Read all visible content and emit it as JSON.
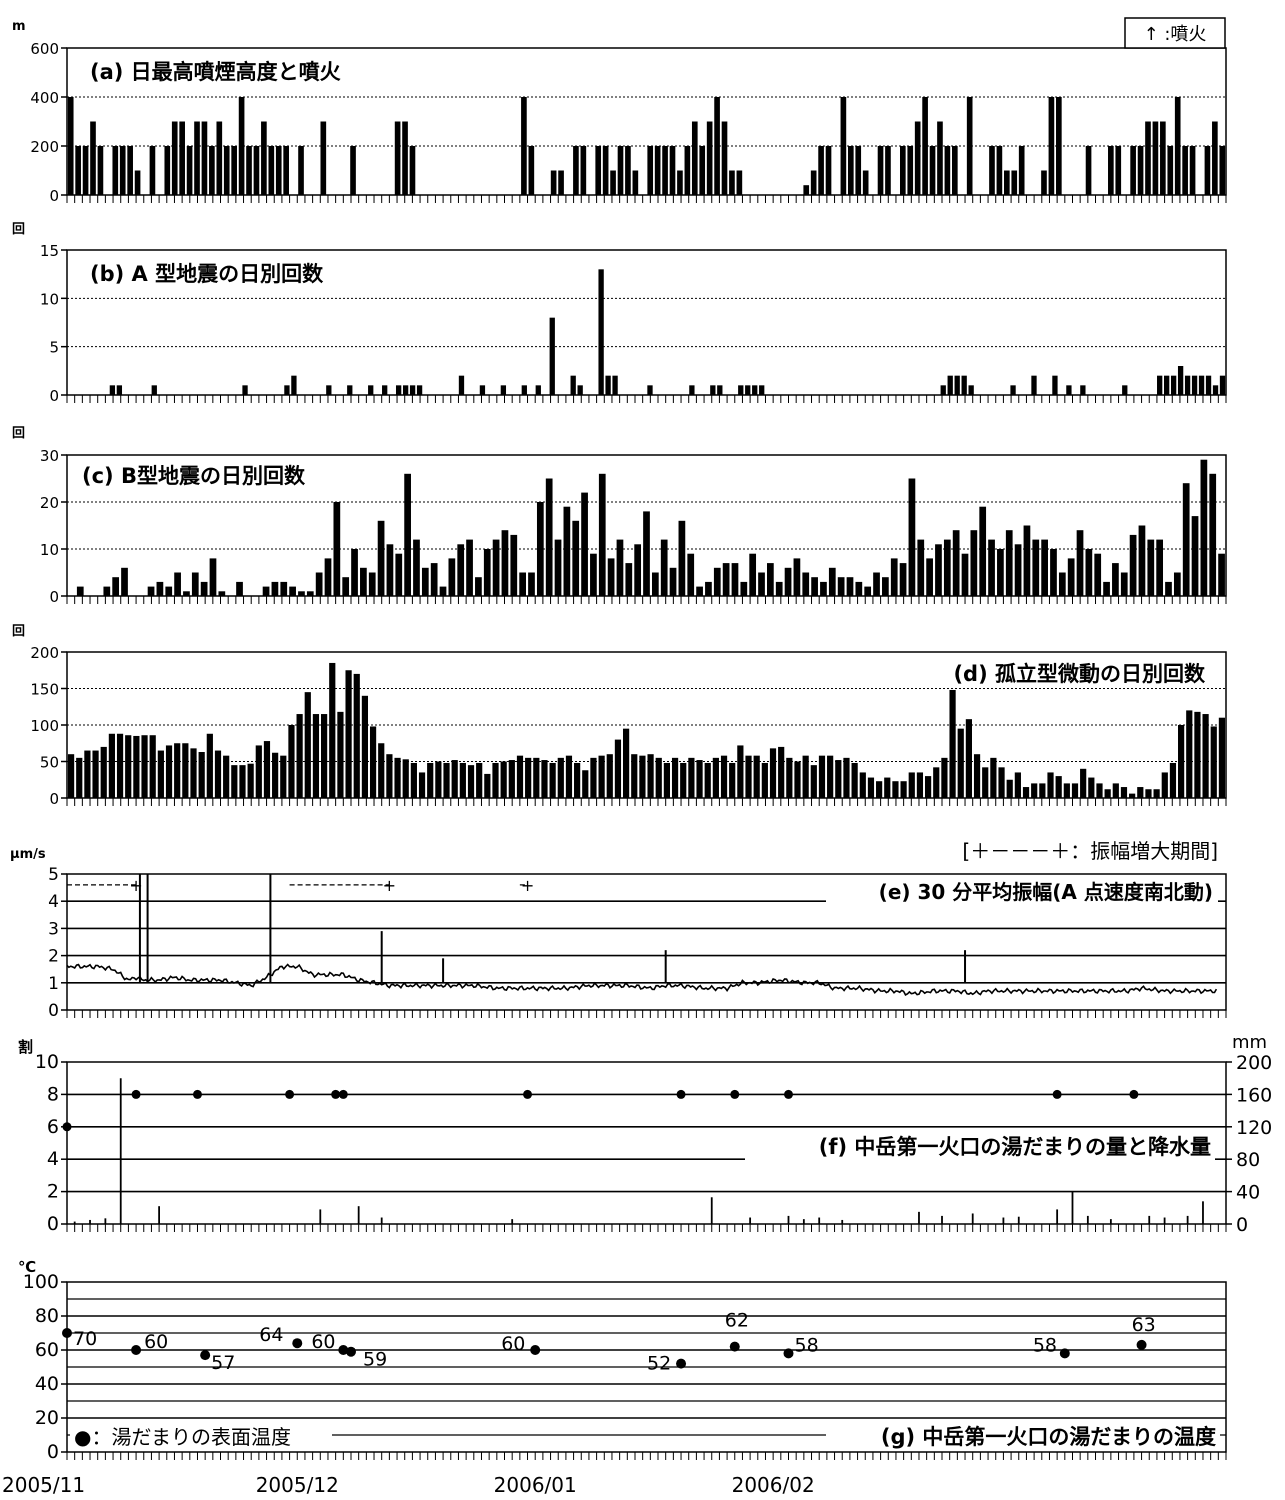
{
  "legend_eruption": "↑ :噴火",
  "note_e": "[＋－－－＋：振幅増大期間]",
  "legend_g": "●：湯だまりの表面温度",
  "date_labels": [
    "2005/11",
    "2005/12",
    "2006/01",
    "2006/02"
  ],
  "colors": {
    "bar": "#000000",
    "grid": "#000000",
    "background": "#ffffff"
  },
  "chart_data": [
    {
      "type": "bar",
      "title": "(a) 日最高噴煙高度と噴火",
      "ylabel": "m",
      "ylim": [
        0,
        600
      ],
      "yticks": [
        0,
        200,
        400,
        600
      ],
      "x": "days from 2005/11/01",
      "values": [
        400,
        200,
        200,
        300,
        200,
        0,
        200,
        200,
        200,
        100,
        0,
        200,
        0,
        200,
        300,
        300,
        200,
        300,
        300,
        200,
        300,
        200,
        200,
        400,
        200,
        200,
        300,
        200,
        200,
        200,
        0,
        200,
        0,
        0,
        300,
        0,
        0,
        0,
        200,
        0,
        0,
        0,
        0,
        0,
        300,
        300,
        200,
        0,
        0,
        0,
        0,
        0,
        0,
        0,
        0,
        0,
        0,
        0,
        0,
        0,
        0,
        400,
        200,
        0,
        0,
        100,
        100,
        0,
        200,
        200,
        0,
        200,
        200,
        100,
        200,
        200,
        100,
        0,
        200,
        200,
        200,
        200,
        100,
        200,
        300,
        200,
        300,
        400,
        300,
        100,
        100,
        0,
        0,
        0,
        0,
        0,
        0,
        0,
        0,
        40,
        100,
        200,
        200,
        0,
        400,
        200,
        200,
        100,
        0,
        200,
        200,
        0,
        200,
        200,
        300,
        400,
        200,
        300,
        200,
        200,
        0,
        400,
        0,
        0,
        200,
        200,
        100,
        100,
        200,
        0,
        0,
        100,
        400,
        400,
        0,
        0,
        0,
        200,
        0,
        0,
        200,
        200,
        0,
        200,
        200,
        300,
        300,
        300,
        200,
        400,
        200,
        200,
        0,
        200,
        300,
        200
      ],
      "grid": "dotted"
    },
    {
      "type": "bar",
      "title": "(b) A 型地震の日別回数",
      "ylabel": "回",
      "ylim": [
        0,
        15
      ],
      "yticks": [
        0,
        5,
        10,
        15
      ],
      "x": "days from 2005/11/01",
      "values": [
        0,
        0,
        0,
        0,
        0,
        0,
        1,
        1,
        0,
        0,
        0,
        0,
        1,
        0,
        0,
        0,
        0,
        0,
        0,
        0,
        0,
        0,
        0,
        0,
        0,
        1,
        0,
        0,
        0,
        0,
        0,
        1,
        2,
        0,
        0,
        0,
        0,
        1,
        0,
        0,
        1,
        0,
        0,
        1,
        0,
        1,
        0,
        1,
        1,
        1,
        1,
        0,
        0,
        0,
        0,
        0,
        2,
        0,
        0,
        1,
        0,
        0,
        1,
        0,
        0,
        1,
        0,
        1,
        0,
        8,
        0,
        0,
        2,
        1,
        0,
        0,
        13,
        2,
        2,
        0,
        0,
        0,
        0,
        1,
        0,
        0,
        0,
        0,
        0,
        1,
        0,
        0,
        1,
        1,
        0,
        0,
        1,
        1,
        1,
        1,
        0,
        0,
        0,
        0,
        0,
        0,
        0,
        0,
        0,
        0,
        0,
        0,
        0,
        0,
        0,
        0,
        0,
        0,
        0,
        0,
        0,
        0,
        0,
        0,
        0,
        1,
        2,
        2,
        2,
        1,
        0,
        0,
        0,
        0,
        0,
        1,
        0,
        0,
        2,
        0,
        0,
        2,
        0,
        1,
        0,
        1,
        0,
        0,
        0,
        0,
        0,
        1,
        0,
        0,
        0,
        0,
        2,
        2,
        2,
        3,
        2,
        2,
        2,
        2,
        1,
        2
      ],
      "grid": "dotted"
    },
    {
      "type": "bar",
      "title": "(c) B型地震の日別回数",
      "ylabel": "回",
      "ylim": [
        0,
        30
      ],
      "yticks": [
        0,
        10,
        20,
        30
      ],
      "x": "days from 2005/11/01",
      "values": [
        0,
        2,
        0,
        0,
        2,
        4,
        6,
        0,
        0,
        2,
        3,
        2,
        5,
        1,
        5,
        3,
        8,
        1,
        0,
        3,
        0,
        0,
        2,
        3,
        3,
        2,
        1,
        1,
        5,
        8,
        20,
        4,
        10,
        6,
        5,
        16,
        11,
        9,
        26,
        12,
        6,
        7,
        2,
        8,
        11,
        12,
        4,
        10,
        12,
        14,
        13,
        5,
        5,
        20,
        25,
        12,
        19,
        16,
        22,
        9,
        26,
        8,
        12,
        7,
        11,
        18,
        5,
        12,
        6,
        16,
        9,
        2,
        3,
        6,
        7,
        7,
        3,
        9,
        5,
        7,
        3,
        6,
        8,
        5,
        4,
        3,
        6,
        4,
        4,
        3,
        2,
        5,
        4,
        8,
        7,
        25,
        12,
        8,
        11,
        12,
        14,
        9,
        14,
        19,
        12,
        10,
        14,
        11,
        15,
        12,
        12,
        10,
        5,
        8,
        14,
        10,
        9,
        3,
        7,
        5,
        13,
        15,
        12,
        12,
        3,
        5,
        24,
        17,
        29,
        26,
        9
      ],
      "grid": "dotted"
    },
    {
      "type": "bar",
      "title": "(d) 孤立型微動の日別回数",
      "ylabel": "回",
      "ylim": [
        0,
        200
      ],
      "yticks": [
        0,
        50,
        100,
        150,
        200
      ],
      "x": "days from 2005/11/01",
      "values": [
        60,
        55,
        65,
        65,
        70,
        88,
        88,
        86,
        85,
        86,
        86,
        65,
        72,
        75,
        75,
        68,
        63,
        88,
        65,
        58,
        45,
        45,
        47,
        72,
        78,
        62,
        58,
        100,
        115,
        145,
        115,
        115,
        185,
        118,
        175,
        170,
        140,
        98,
        75,
        60,
        55,
        53,
        48,
        35,
        48,
        50,
        48,
        52,
        48,
        45,
        48,
        33,
        48,
        50,
        52,
        58,
        55,
        55,
        52,
        48,
        55,
        58,
        48,
        38,
        55,
        58,
        60,
        80,
        95,
        60,
        58,
        60,
        55,
        48,
        55,
        48,
        55,
        52,
        48,
        55,
        58,
        48,
        72,
        58,
        58,
        48,
        68,
        70,
        55,
        50,
        58,
        45,
        58,
        58,
        52,
        55,
        48,
        35,
        28,
        23,
        28,
        23,
        23,
        35,
        35,
        30,
        42,
        55,
        148,
        95,
        108,
        60,
        42,
        55,
        42,
        25,
        35,
        15,
        20,
        20,
        35,
        30,
        20,
        20,
        40,
        28,
        20,
        12,
        20,
        15,
        6,
        15,
        12,
        12,
        35,
        48,
        100,
        120,
        118,
        115,
        98,
        110
      ],
      "grid": "dotted"
    },
    {
      "type": "line",
      "title": "(e) 30 分平均振幅(A 点速度南北動)",
      "ylabel": "μm/s",
      "ylim": [
        0,
        5
      ],
      "yticks": [
        0,
        1,
        2,
        3,
        4,
        5
      ],
      "x": "days from 2005/11/01",
      "series": [
        {
          "x": [
            0,
            2,
            4,
            6,
            8,
            9,
            10,
            11,
            12,
            14,
            16,
            18,
            20,
            22,
            24,
            26,
            28,
            30,
            32,
            34,
            36,
            38,
            40,
            42,
            45,
            48,
            50,
            53,
            56,
            58,
            60,
            62,
            65,
            68,
            70,
            73,
            76,
            78,
            80,
            83,
            86,
            88,
            90,
            93,
            96,
            98,
            100,
            103,
            106,
            108,
            110,
            113,
            116,
            118,
            120,
            123,
            126,
            128,
            130,
            133,
            136,
            138,
            140,
            143,
            146,
            148,
            150
          ],
          "values": [
            1.6,
            1.6,
            1.6,
            1.5,
            1.1,
            1.2,
            1.1,
            1.1,
            1.1,
            1.2,
            1.1,
            1.1,
            1.1,
            1.0,
            0.9,
            1.2,
            1.6,
            1.6,
            1.3,
            1.3,
            1.3,
            1.1,
            1.0,
            0.9,
            0.9,
            0.9,
            0.9,
            0.9,
            0.8,
            0.8,
            0.8,
            0.8,
            0.8,
            0.9,
            0.9,
            0.9,
            0.8,
            0.9,
            0.9,
            0.8,
            0.8,
            1.0,
            1.0,
            1.1,
            1.0,
            1.0,
            0.8,
            0.8,
            0.7,
            0.7,
            0.6,
            0.7,
            0.7,
            0.6,
            0.7,
            0.7,
            0.7,
            0.7,
            0.7,
            0.7,
            0.7,
            0.7,
            0.8,
            0.7,
            0.7,
            0.7,
            0.7
          ]
        }
      ],
      "spikes": [
        {
          "x": 9.5,
          "y": 5
        },
        {
          "x": 10.5,
          "y": 5
        },
        {
          "x": 26.5,
          "y": 5
        },
        {
          "x": 41,
          "y": 2.9
        },
        {
          "x": 49,
          "y": 1.9
        },
        {
          "x": 78,
          "y": 2.2
        },
        {
          "x": 117,
          "y": 2.2
        }
      ],
      "periods": [
        [
          0,
          9
        ],
        [
          29,
          42
        ],
        [
          59,
          60
        ]
      ],
      "grid": "solid"
    },
    {
      "type": "scatter",
      "title": "(f) 中岳第一火口の湯だまりの量と降水量",
      "ylabel": "割",
      "ylabel_right": "mm",
      "ylim": [
        0,
        10
      ],
      "yticks": [
        0,
        2,
        4,
        6,
        8,
        10
      ],
      "ylim_right": [
        0,
        200
      ],
      "yticks_right": [
        0,
        40,
        80,
        120,
        160,
        200
      ],
      "x": "days from 2005/11/01",
      "series": [
        {
          "name": "湯だまりの量",
          "x": [
            0,
            9,
            17,
            29,
            35,
            36,
            60,
            80,
            87,
            94,
            129,
            139
          ],
          "values": [
            6,
            8,
            8,
            8,
            8,
            8,
            8,
            8,
            8,
            8,
            8,
            8
          ]
        },
        {
          "name": "降水量",
          "x": [
            1,
            3,
            5,
            7,
            12,
            33,
            38,
            41,
            58,
            84,
            89,
            94,
            96,
            98,
            101,
            111,
            114,
            118,
            122,
            124,
            129,
            131,
            133,
            136,
            141,
            143,
            146,
            148
          ],
          "values": [
            3,
            5,
            7,
            180,
            22,
            18,
            22,
            8,
            6,
            33,
            8,
            10,
            6,
            8,
            5,
            15,
            10,
            13,
            8,
            9,
            18,
            40,
            10,
            6,
            10,
            8,
            10,
            28
          ]
        }
      ],
      "grid": "solid"
    },
    {
      "type": "scatter",
      "title": "(g) 中岳第一火口の湯だまりの温度",
      "ylabel": "℃",
      "ylim": [
        0,
        100
      ],
      "yticks": [
        0,
        20,
        40,
        60,
        80,
        100
      ],
      "x": "days from 2005/11/01",
      "series": [
        {
          "name": "湯だまりの表面温度",
          "x": [
            0,
            9,
            18,
            30,
            36,
            37,
            61,
            80,
            87,
            94,
            130,
            140
          ],
          "values": [
            70,
            60,
            57,
            64,
            60,
            59,
            60,
            52,
            62,
            58,
            58,
            63
          ]
        }
      ],
      "grid": "solid"
    }
  ]
}
